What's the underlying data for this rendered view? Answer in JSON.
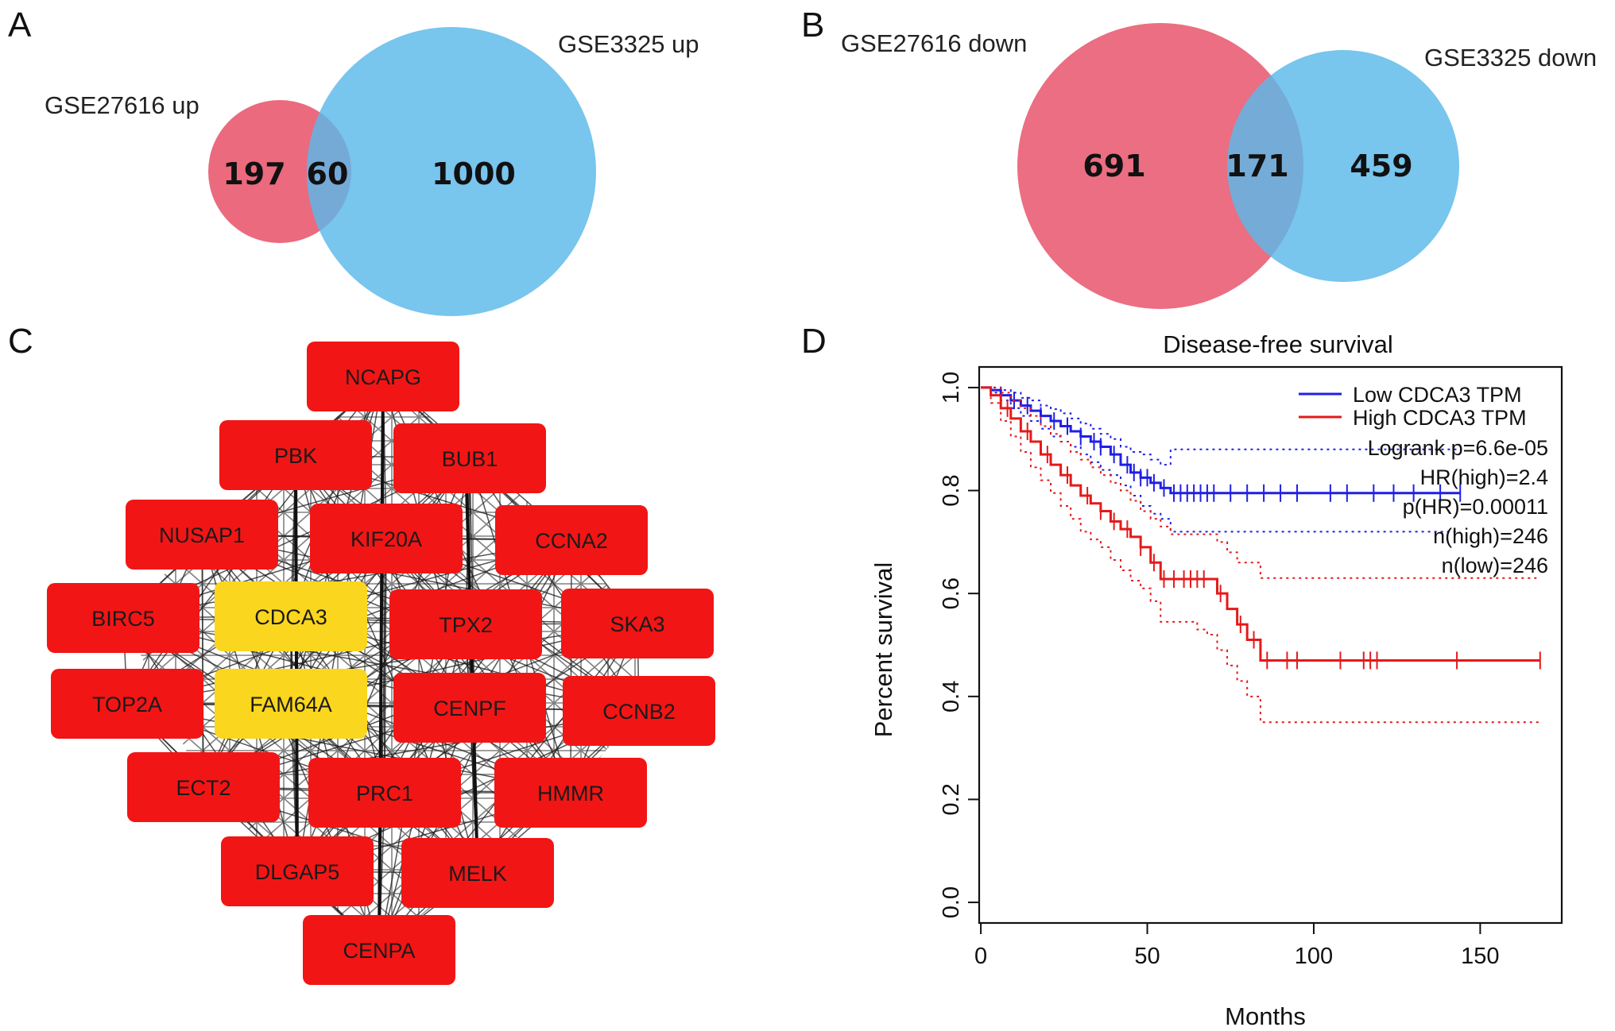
{
  "panels": {
    "A": {
      "letter": "A",
      "left_label": "GSE27616 up",
      "right_label": "GSE3325 up",
      "left_only": "197",
      "overlap": "60",
      "right_only": "1000"
    },
    "B": {
      "letter": "B",
      "left_label": "GSE27616 down",
      "right_label": "GSE3325 down",
      "left_only": "691",
      "overlap": "171",
      "right_only": "459"
    },
    "C": {
      "letter": "C",
      "nodes": [
        "NCAPG",
        "PBK",
        "BUB1",
        "NUSAP1",
        "KIF20A",
        "CCNA2",
        "BIRC5",
        "CDCA3",
        "TPX2",
        "SKA3",
        "TOP2A",
        "FAM64A",
        "CENPF",
        "CCNB2",
        "ECT2",
        "PRC1",
        "HMMR",
        "DLGAP5",
        "MELK",
        "CENPA"
      ],
      "highlighted_nodes": [
        "CDCA3",
        "FAM64A"
      ]
    },
    "D": {
      "letter": "D"
    }
  },
  "colors": {
    "venn_pink": "#e8556c",
    "venn_blue": "#5ab8ea",
    "venn_overlap": "#7085bd",
    "node_red": "#f21515",
    "node_yellow": "#fad61e",
    "km_low": "#1f1fe6",
    "km_high": "#e41a1a"
  },
  "chart_data": {
    "type": "line",
    "title": "Disease-free survival",
    "xlabel": "Months",
    "ylabel": "Percent survival",
    "xlim": [
      0,
      175
    ],
    "ylim": [
      0,
      1.0
    ],
    "xticks": [
      "0",
      "50",
      "100",
      "150"
    ],
    "yticks": [
      "0.0",
      "0.2",
      "0.4",
      "0.6",
      "0.8",
      "1.0"
    ],
    "legend": [
      "Low CDCA3 TPM",
      "High CDCA3 TPM"
    ],
    "stats": [
      "Logrank p=6.6e-05",
      "HR(high)=2.4",
      "p(HR)=0.00011",
      "n(high)=246",
      "n(low)=246"
    ],
    "series": [
      {
        "name": "Low CDCA3 TPM",
        "x": [
          0,
          3,
          6,
          9,
          12,
          15,
          18,
          21,
          24,
          27,
          30,
          33,
          36,
          39,
          42,
          45,
          48,
          51,
          54,
          57,
          60,
          80,
          100,
          120,
          144
        ],
        "y": [
          1.0,
          0.995,
          0.985,
          0.975,
          0.965,
          0.955,
          0.945,
          0.935,
          0.925,
          0.915,
          0.905,
          0.895,
          0.885,
          0.87,
          0.85,
          0.835,
          0.825,
          0.815,
          0.805,
          0.795,
          0.795,
          0.795,
          0.795,
          0.795,
          0.795
        ],
        "upper": [
          1.0,
          1.0,
          0.995,
          0.99,
          0.98,
          0.975,
          0.965,
          0.958,
          0.95,
          0.94,
          0.93,
          0.92,
          0.91,
          0.9,
          0.885,
          0.875,
          0.87,
          0.86,
          0.85,
          0.88,
          0.88,
          0.88,
          0.88,
          0.88,
          0.88
        ],
        "lower": [
          1.0,
          0.99,
          0.975,
          0.96,
          0.945,
          0.935,
          0.92,
          0.905,
          0.895,
          0.885,
          0.87,
          0.855,
          0.84,
          0.83,
          0.81,
          0.79,
          0.77,
          0.755,
          0.745,
          0.72,
          0.72,
          0.72,
          0.72,
          0.72,
          0.72
        ],
        "censor_x": [
          6,
          10,
          14,
          18,
          22,
          26,
          30,
          34,
          36,
          40,
          44,
          46,
          48,
          50,
          52,
          55,
          58,
          60,
          62,
          64,
          66,
          68,
          70,
          75,
          80,
          85,
          90,
          95,
          105,
          110,
          118,
          124,
          130,
          138,
          144
        ]
      },
      {
        "name": "High CDCA3 TPM",
        "x": [
          0,
          3,
          6,
          9,
          12,
          15,
          18,
          21,
          24,
          27,
          30,
          33,
          36,
          39,
          42,
          45,
          48,
          51,
          54,
          57,
          60,
          65,
          68,
          71,
          74,
          77,
          80,
          84,
          90,
          100,
          120,
          150,
          168
        ],
        "y": [
          1.0,
          0.985,
          0.96,
          0.94,
          0.915,
          0.895,
          0.87,
          0.85,
          0.83,
          0.81,
          0.79,
          0.775,
          0.76,
          0.74,
          0.725,
          0.71,
          0.69,
          0.66,
          0.628,
          0.628,
          0.628,
          0.628,
          0.628,
          0.6,
          0.57,
          0.54,
          0.51,
          0.47,
          0.47,
          0.47,
          0.47,
          0.47,
          0.47
        ],
        "upper": [
          1.0,
          1.0,
          0.99,
          0.975,
          0.96,
          0.945,
          0.925,
          0.91,
          0.895,
          0.875,
          0.86,
          0.845,
          0.83,
          0.815,
          0.8,
          0.78,
          0.76,
          0.745,
          0.73,
          0.715,
          0.715,
          0.715,
          0.715,
          0.7,
          0.68,
          0.66,
          0.66,
          0.63,
          0.63,
          0.63,
          0.63,
          0.63,
          0.63
        ],
        "lower": [
          1.0,
          0.97,
          0.935,
          0.905,
          0.875,
          0.845,
          0.82,
          0.795,
          0.77,
          0.745,
          0.72,
          0.705,
          0.69,
          0.665,
          0.645,
          0.625,
          0.61,
          0.585,
          0.545,
          0.545,
          0.545,
          0.53,
          0.52,
          0.49,
          0.46,
          0.43,
          0.4,
          0.35,
          0.35,
          0.35,
          0.35,
          0.35,
          0.35
        ],
        "censor_x": [
          8,
          14,
          20,
          26,
          32,
          36,
          40,
          44,
          48,
          52,
          55,
          58,
          61,
          63,
          65,
          67,
          72,
          78,
          82,
          86,
          92,
          95,
          108,
          115,
          117,
          119,
          143,
          168
        ]
      }
    ]
  }
}
